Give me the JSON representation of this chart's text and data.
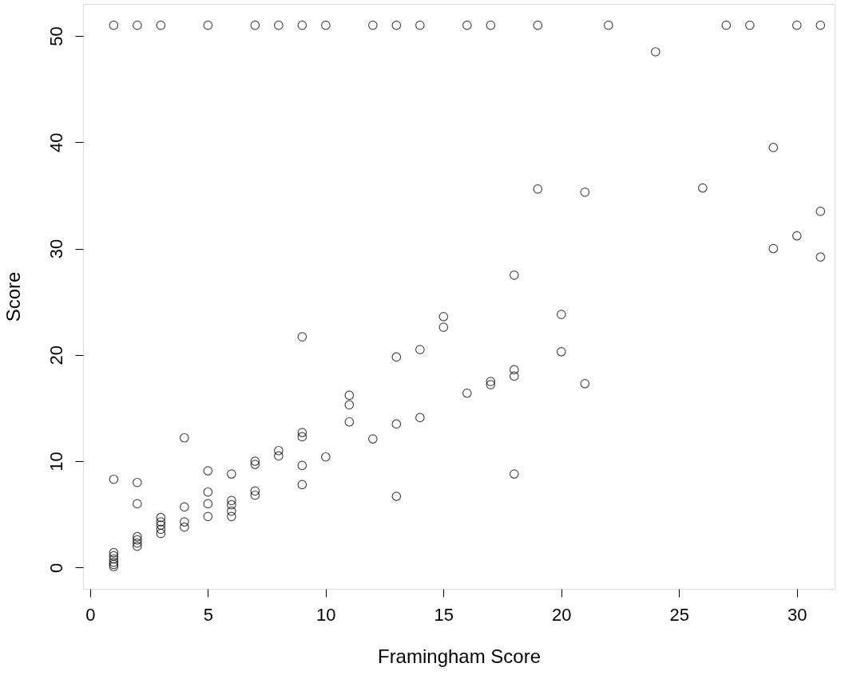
{
  "chart_data": {
    "type": "scatter",
    "xlabel": "Framingham Score",
    "ylabel": "Score",
    "xlim": [
      -0.3,
      31.6
    ],
    "ylim": [
      -2,
      53
    ],
    "xticks": [
      0,
      5,
      10,
      15,
      20,
      25,
      30
    ],
    "yticks": [
      0,
      10,
      20,
      30,
      40,
      50
    ],
    "grid": false,
    "legend": false,
    "marker": "circle",
    "series": [
      {
        "color": "#000000",
        "x": [
          1,
          2,
          3,
          5,
          7,
          8,
          9,
          10,
          12,
          13,
          14,
          16,
          17,
          19,
          22,
          27,
          28,
          30,
          31,
          24,
          29,
          26,
          19,
          21,
          31,
          30,
          29,
          31,
          18,
          20,
          15,
          15,
          9,
          14,
          20,
          13,
          18,
          18,
          17,
          17,
          21,
          16,
          11,
          11,
          14,
          11,
          13,
          4,
          9,
          9,
          12,
          8,
          8,
          10,
          7,
          7,
          9,
          5,
          6,
          18,
          1,
          2,
          9,
          5,
          7,
          7,
          13,
          6,
          6,
          2,
          4,
          5,
          6,
          5,
          6,
          3,
          3,
          3,
          4,
          4,
          3,
          3,
          2,
          2,
          2,
          2,
          1,
          1,
          1,
          1,
          1,
          1
        ],
        "values": [
          51,
          51,
          51,
          51,
          51,
          51,
          51,
          51,
          51,
          51,
          51,
          51,
          51,
          51,
          51,
          51,
          51,
          51,
          51,
          48.5,
          39.5,
          35.7,
          35.6,
          35.3,
          33.5,
          31.2,
          30,
          29.2,
          27.5,
          23.8,
          23.6,
          22.6,
          21.7,
          20.5,
          20.3,
          19.8,
          18.6,
          18,
          17.5,
          17.2,
          17.3,
          16.4,
          16.2,
          15.3,
          14.1,
          13.7,
          13.5,
          12.2,
          12.7,
          12.3,
          12.1,
          11,
          10.5,
          10.4,
          10,
          9.7,
          9.6,
          9.1,
          8.8,
          8.8,
          8.3,
          8,
          7.8,
          7.1,
          7.2,
          6.8,
          6.7,
          6.3,
          5.9,
          6,
          5.7,
          6,
          5.3,
          4.8,
          4.8,
          4.7,
          4.3,
          4,
          4.3,
          3.8,
          3.6,
          3.2,
          2.9,
          2.6,
          2.3,
          2,
          1.4,
          1.1,
          0.8,
          0.5,
          0.3,
          0.1
        ]
      }
    ]
  }
}
